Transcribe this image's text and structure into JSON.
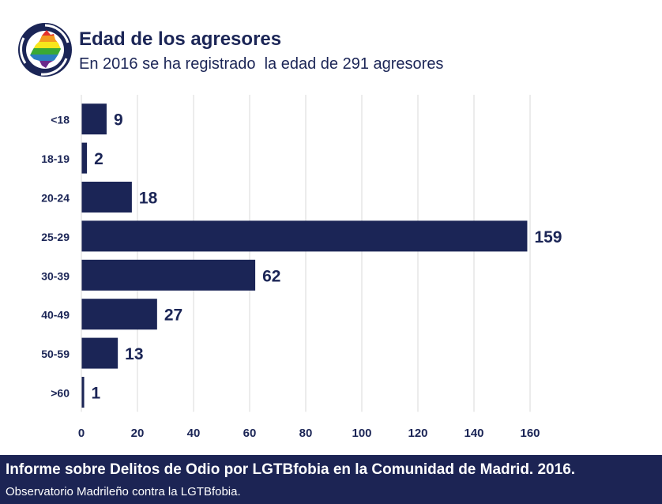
{
  "header": {
    "title": "Edad de los agresores",
    "subtitle": "En 2016 se ha registrado  la edad de 291 agresores"
  },
  "footer": {
    "title": "Informe sobre Delitos de Odio por LGTBfobia en la Comunidad de Madrid. 2016.",
    "subtitle": "Observatorio Madrileño contra la LGTBfobia."
  },
  "colors": {
    "bar": "#1b2556",
    "grid": "#d9d9d9",
    "footer_bg": "#1c2454"
  },
  "chart_data": {
    "type": "bar",
    "orientation": "horizontal",
    "title": "Edad de los agresores",
    "categories": [
      "<18",
      "18-19",
      "20-24",
      "25-29",
      "30-39",
      "40-49",
      "50-59",
      ">60"
    ],
    "values": [
      9,
      2,
      18,
      159,
      62,
      27,
      13,
      1
    ],
    "xticks": [
      0,
      20,
      40,
      60,
      80,
      100,
      120,
      140,
      160
    ],
    "xlim": [
      0,
      160
    ],
    "grid": true,
    "data_labels": true
  }
}
